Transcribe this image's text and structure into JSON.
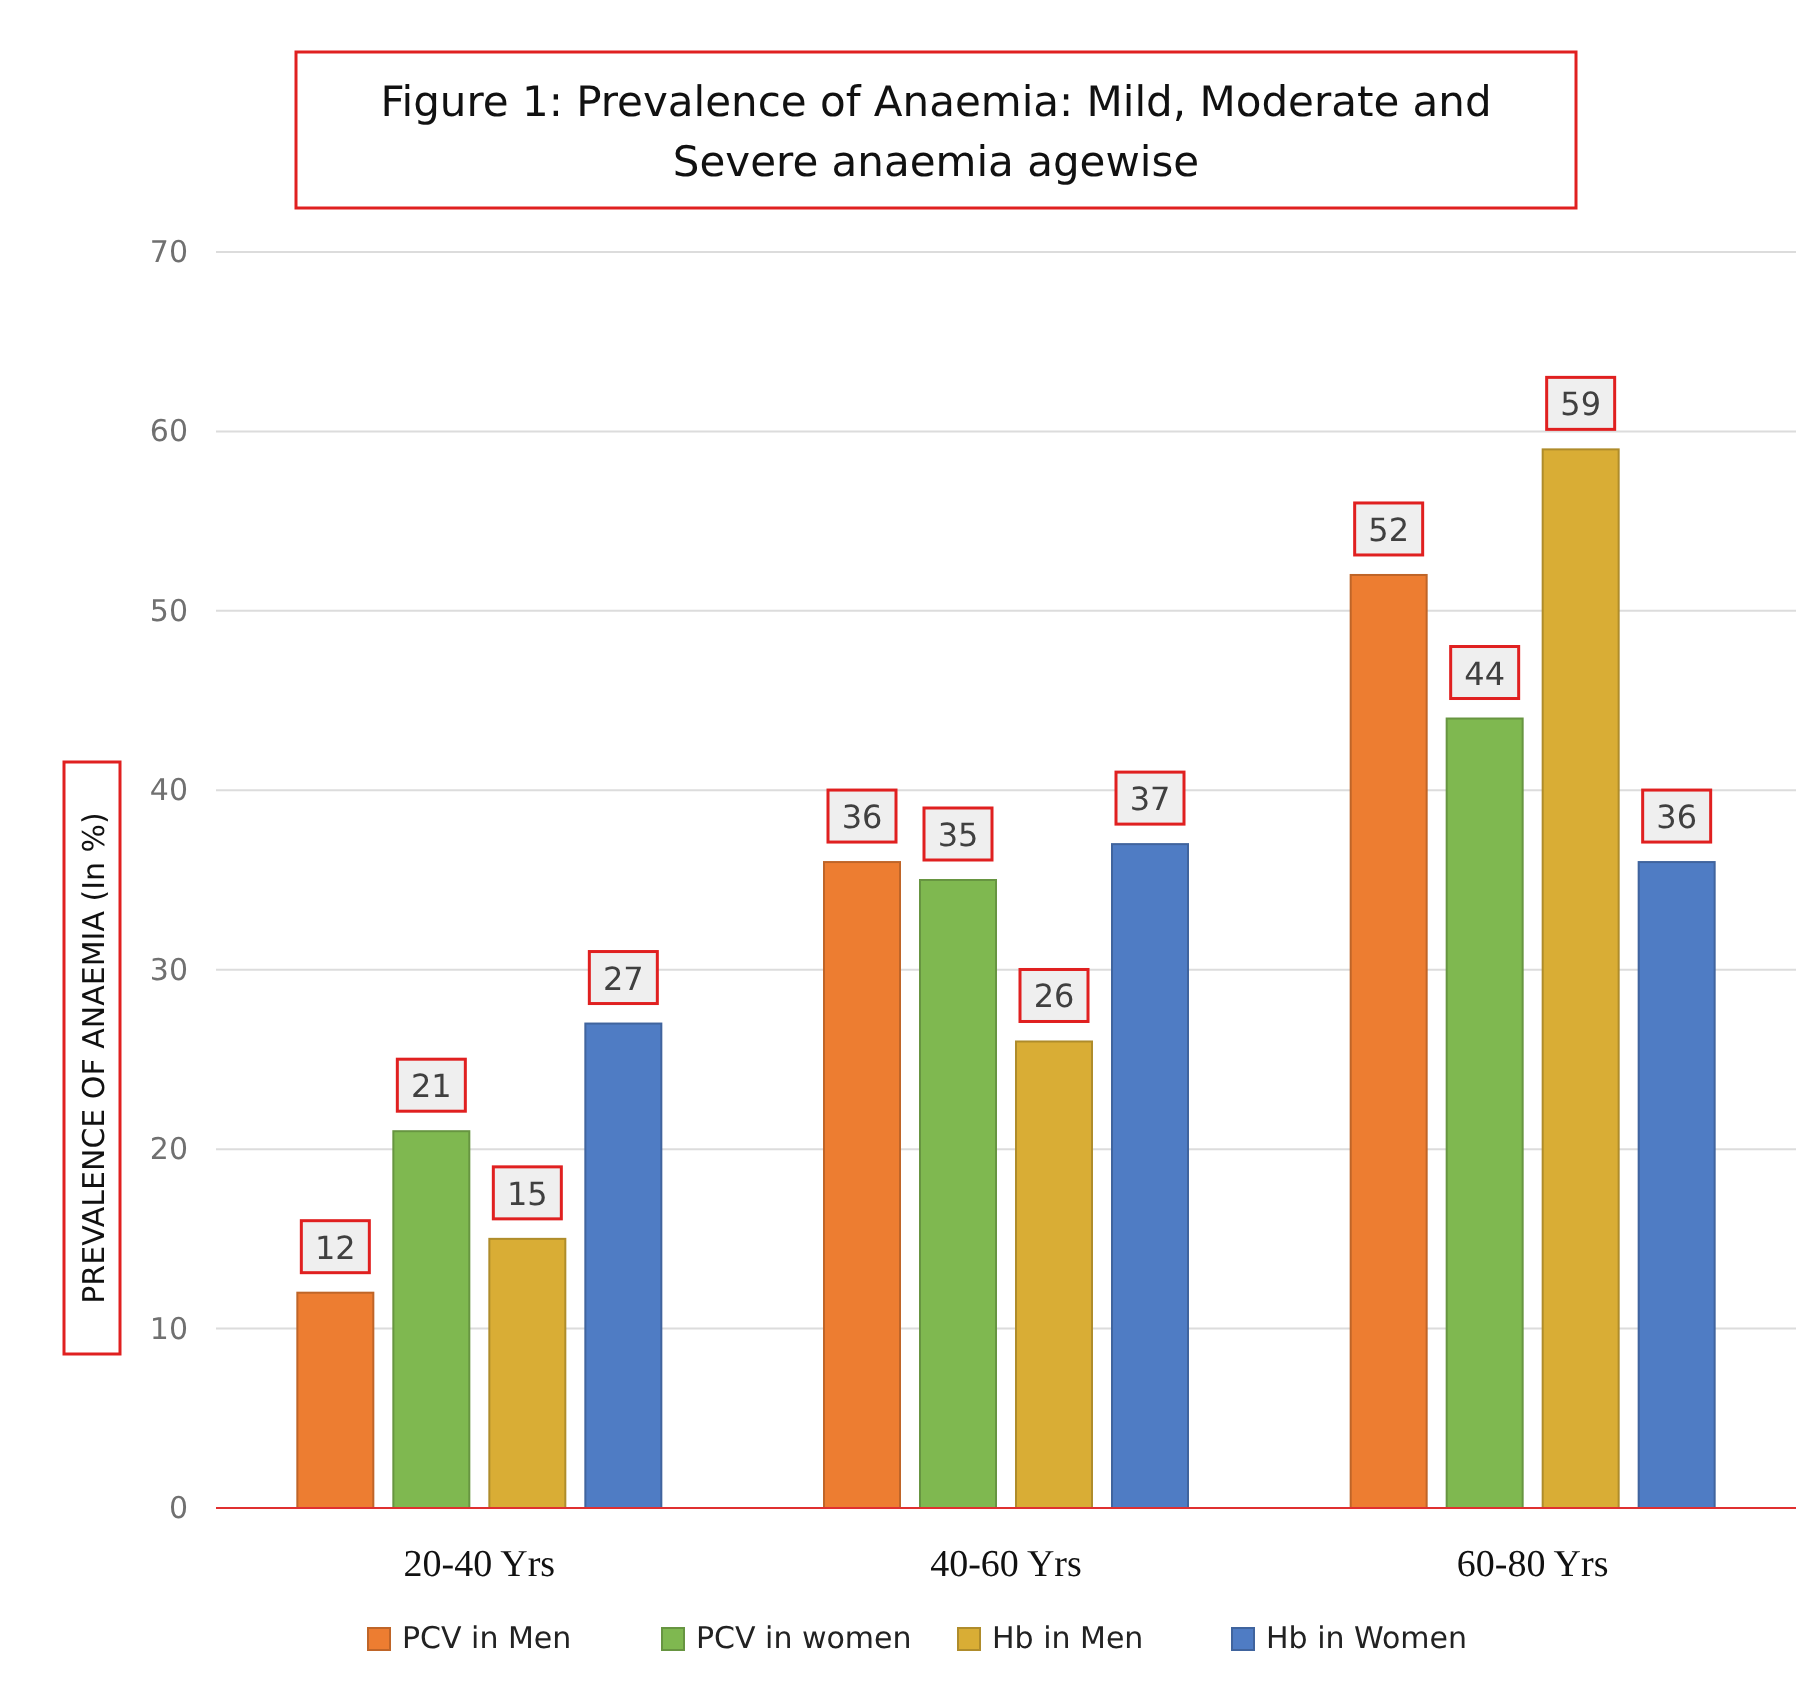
{
  "chart_data": {
    "type": "bar",
    "title": "Figure 1: Prevalence of Anaemia: Mild, Moderate and Severe anaemia agewise",
    "ylabel": "PREVALENCE OF ANAEMIA (In  %)",
    "categories": [
      "20-40 Yrs",
      "40-60 Yrs",
      "60-80 Yrs"
    ],
    "series": [
      {
        "name": "PCV in Men",
        "color": "#ed7d31",
        "values": [
          12,
          36,
          52
        ]
      },
      {
        "name": "PCV in women",
        "color": "#7fb850",
        "values": [
          21,
          35,
          44
        ]
      },
      {
        "name": "Hb in Men",
        "color": "#d9ad35",
        "values": [
          15,
          26,
          59
        ]
      },
      {
        "name": "Hb in Women",
        "color": "#4f7cc4",
        "values": [
          27,
          37,
          36
        ]
      }
    ],
    "ylim": [
      0,
      70
    ],
    "yticks": [
      0,
      10,
      20,
      30,
      40,
      50,
      60,
      70
    ],
    "grid": "y",
    "legend": "bottom",
    "data_labels": true
  }
}
